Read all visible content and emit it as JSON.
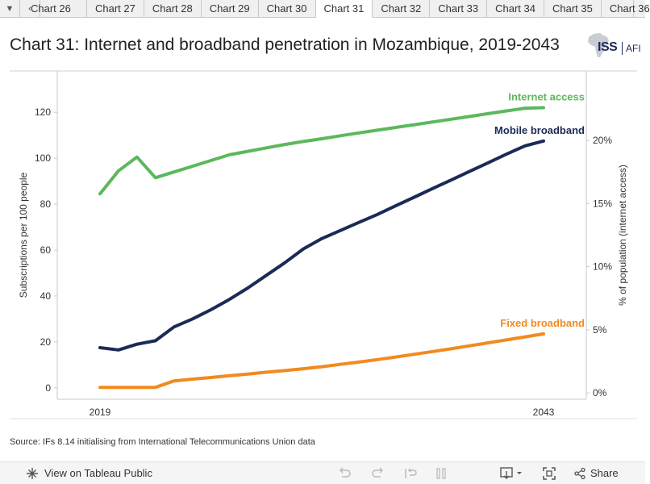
{
  "tabs": {
    "items": [
      "Chart 26",
      "Chart 27",
      "Chart 28",
      "Chart 29",
      "Chart 30",
      "Chart 31",
      "Chart 32",
      "Chart 33",
      "Chart 34",
      "Chart 35",
      "Chart 36"
    ],
    "active_index": 5
  },
  "header": {
    "title": "Chart 31: Internet and broadband penetration in Mozambique, 2019-2043",
    "logo_text": "ISS",
    "logo_sub": "AFI"
  },
  "footer": {
    "source": "Source: IFs 8.14 initialising from International Telecommunications Union data"
  },
  "toolbar": {
    "view_label": "View on Tableau Public",
    "share_label": "Share"
  },
  "colors": {
    "internet": "#5cb85c",
    "mobile": "#1b2a57",
    "fixed": "#f28a1f",
    "grid": "#d9d9d9"
  },
  "chart_data": {
    "type": "line",
    "title": "Chart 31: Internet and broadband penetration in Mozambique, 2019-2043",
    "ylabel": "Subscriptions per 100 people",
    "y2label": "% of population (internet access)",
    "xlabel": "",
    "x_ticks": [
      "2019",
      "2043"
    ],
    "ylim": [
      -5,
      138
    ],
    "yticks": [
      "0",
      "20",
      "40",
      "60",
      "80",
      "100",
      "120"
    ],
    "y2ticks": [
      "0%",
      "5%",
      "10%",
      "15%",
      "20%"
    ],
    "y2lim_pct": [
      -0.5,
      25.5
    ],
    "x": [
      2019,
      2020,
      2021,
      2022,
      2023,
      2024,
      2025,
      2026,
      2027,
      2028,
      2029,
      2030,
      2031,
      2032,
      2033,
      2034,
      2035,
      2036,
      2037,
      2038,
      2039,
      2040,
      2041,
      2042,
      2043
    ],
    "series": [
      {
        "name": "Internet access",
        "label": "Internet access",
        "axis": "left",
        "values": [
          84.5,
          94.5,
          100.5,
          91.5,
          94,
          96.5,
          99,
          101.5,
          103,
          104.5,
          106,
          107.3,
          108.5,
          109.8,
          111,
          112.2,
          113.4,
          114.6,
          115.8,
          117,
          118.2,
          119.4,
          120.6,
          121.8,
          122
        ]
      },
      {
        "name": "Mobile broadband",
        "label": "Mobile broadband",
        "axis": "left",
        "values": [
          17.5,
          16.5,
          19,
          20.5,
          26.5,
          30,
          34,
          38.5,
          43.5,
          49,
          54.5,
          60.5,
          65,
          68.5,
          72,
          75.5,
          79.3,
          83,
          86.8,
          90.5,
          94.3,
          98,
          101.8,
          105.4,
          107.5
        ]
      },
      {
        "name": "Fixed broadband",
        "label": "Fixed broadband",
        "axis": "left",
        "values": [
          0.2,
          0.2,
          0.2,
          0.2,
          3.0,
          3.8,
          4.5,
          5.3,
          6.0,
          6.8,
          7.5,
          8.3,
          9.2,
          10.2,
          11.2,
          12.3,
          13.4,
          14.6,
          15.8,
          17.0,
          18.3,
          19.6,
          20.9,
          22.2,
          23.5
        ]
      }
    ]
  }
}
